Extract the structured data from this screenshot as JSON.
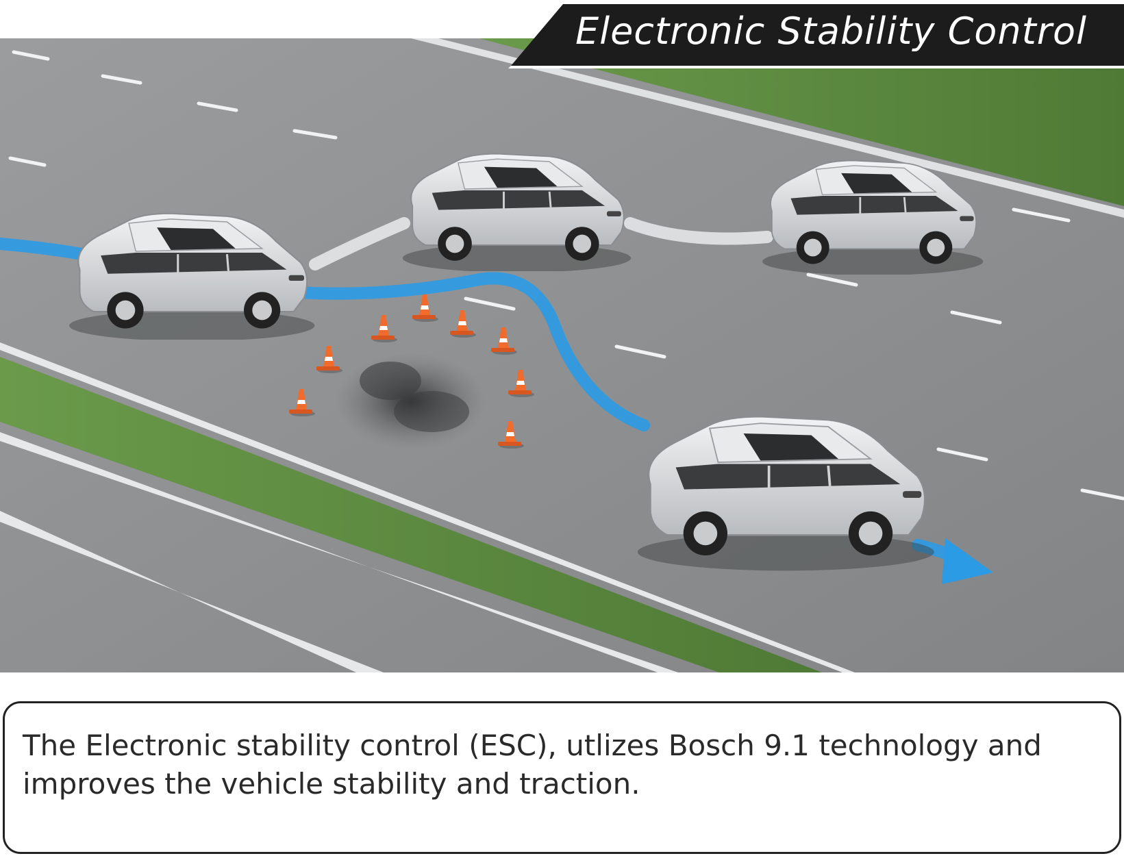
{
  "title": "Electronic Stability Control",
  "caption": "The Electronic stability control (ESC), utlizes Bosch 9.1 technology and improves the vehicle stability and traction.",
  "colors": {
    "banner": "#1c1c1c",
    "road": "#8e9092",
    "grass": "#5f8a44",
    "path_blue": "#2b9be6",
    "path_white": "#e4e6e8",
    "cone": "#f06b2c",
    "car_body": "#d9dbdd",
    "border": "#222222"
  },
  "icons": [
    "suv-car",
    "traffic-cone",
    "debris-pile",
    "direction-arrow"
  ]
}
